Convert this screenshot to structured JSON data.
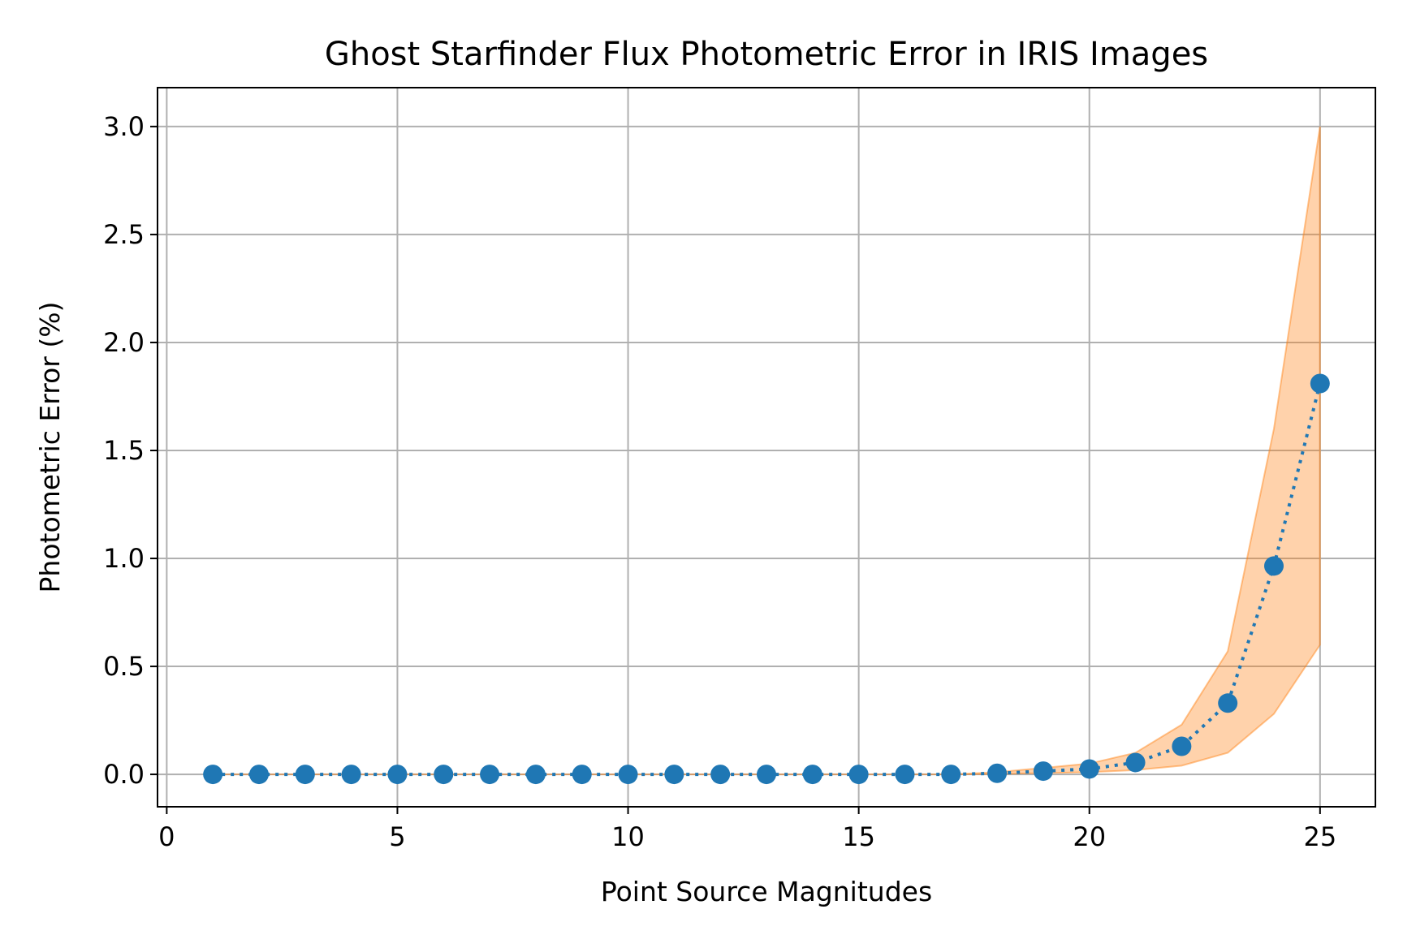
{
  "chart_data": {
    "type": "line",
    "title": "Ghost Starfinder Flux Photometric Error in IRIS Images",
    "xlabel": "Point Source Magnitudes",
    "ylabel": "Photometric Error (%)",
    "xlim": [
      -0.2,
      26.2
    ],
    "ylim": [
      -0.15,
      3.18
    ],
    "xticks": [
      0,
      5,
      10,
      15,
      20,
      25
    ],
    "xtick_labels": [
      "0",
      "5",
      "10",
      "15",
      "20",
      "25"
    ],
    "yticks": [
      0.0,
      0.5,
      1.0,
      1.5,
      2.0,
      2.5,
      3.0
    ],
    "ytick_labels": [
      "0.0",
      "0.5",
      "1.0",
      "1.5",
      "2.0",
      "2.5",
      "3.0"
    ],
    "grid": true,
    "series": [
      {
        "x": [
          1,
          2,
          3,
          4,
          5,
          6,
          7,
          8,
          9,
          10,
          11,
          12,
          13,
          14,
          15,
          16,
          17,
          18,
          19,
          20,
          21,
          22,
          23,
          24,
          25
        ],
        "values": [
          0.0,
          0.0,
          0.0,
          0.0,
          0.0,
          0.0,
          0.0,
          0.0,
          0.0,
          0.0,
          0.0,
          0.0,
          0.0,
          0.0,
          0.0,
          0.0,
          0.0,
          0.005,
          0.015,
          0.025,
          0.055,
          0.13,
          0.33,
          0.965,
          1.81
        ],
        "style": "dotted line with circle markers",
        "color": "#1f77b4"
      }
    ],
    "band": {
      "x": [
        1,
        2,
        3,
        4,
        5,
        6,
        7,
        8,
        9,
        10,
        11,
        12,
        13,
        14,
        15,
        16,
        17,
        18,
        19,
        20,
        21,
        22,
        23,
        24,
        25
      ],
      "lower": [
        0.0,
        0.0,
        0.0,
        0.0,
        0.0,
        0.0,
        0.0,
        0.0,
        0.0,
        0.0,
        0.0,
        0.0,
        0.0,
        0.0,
        0.0,
        0.0,
        0.0,
        0.002,
        0.006,
        0.01,
        0.02,
        0.04,
        0.1,
        0.28,
        0.6
      ],
      "upper": [
        0.0,
        0.0,
        0.0,
        0.0,
        0.0,
        0.0,
        0.0,
        0.0,
        0.0,
        0.0,
        0.0,
        0.0,
        0.0,
        0.0,
        0.0,
        0.0,
        0.0,
        0.01,
        0.03,
        0.05,
        0.1,
        0.23,
        0.57,
        1.6,
        3.0
      ],
      "color": "#ff7f0e",
      "opacity": 0.35
    }
  }
}
